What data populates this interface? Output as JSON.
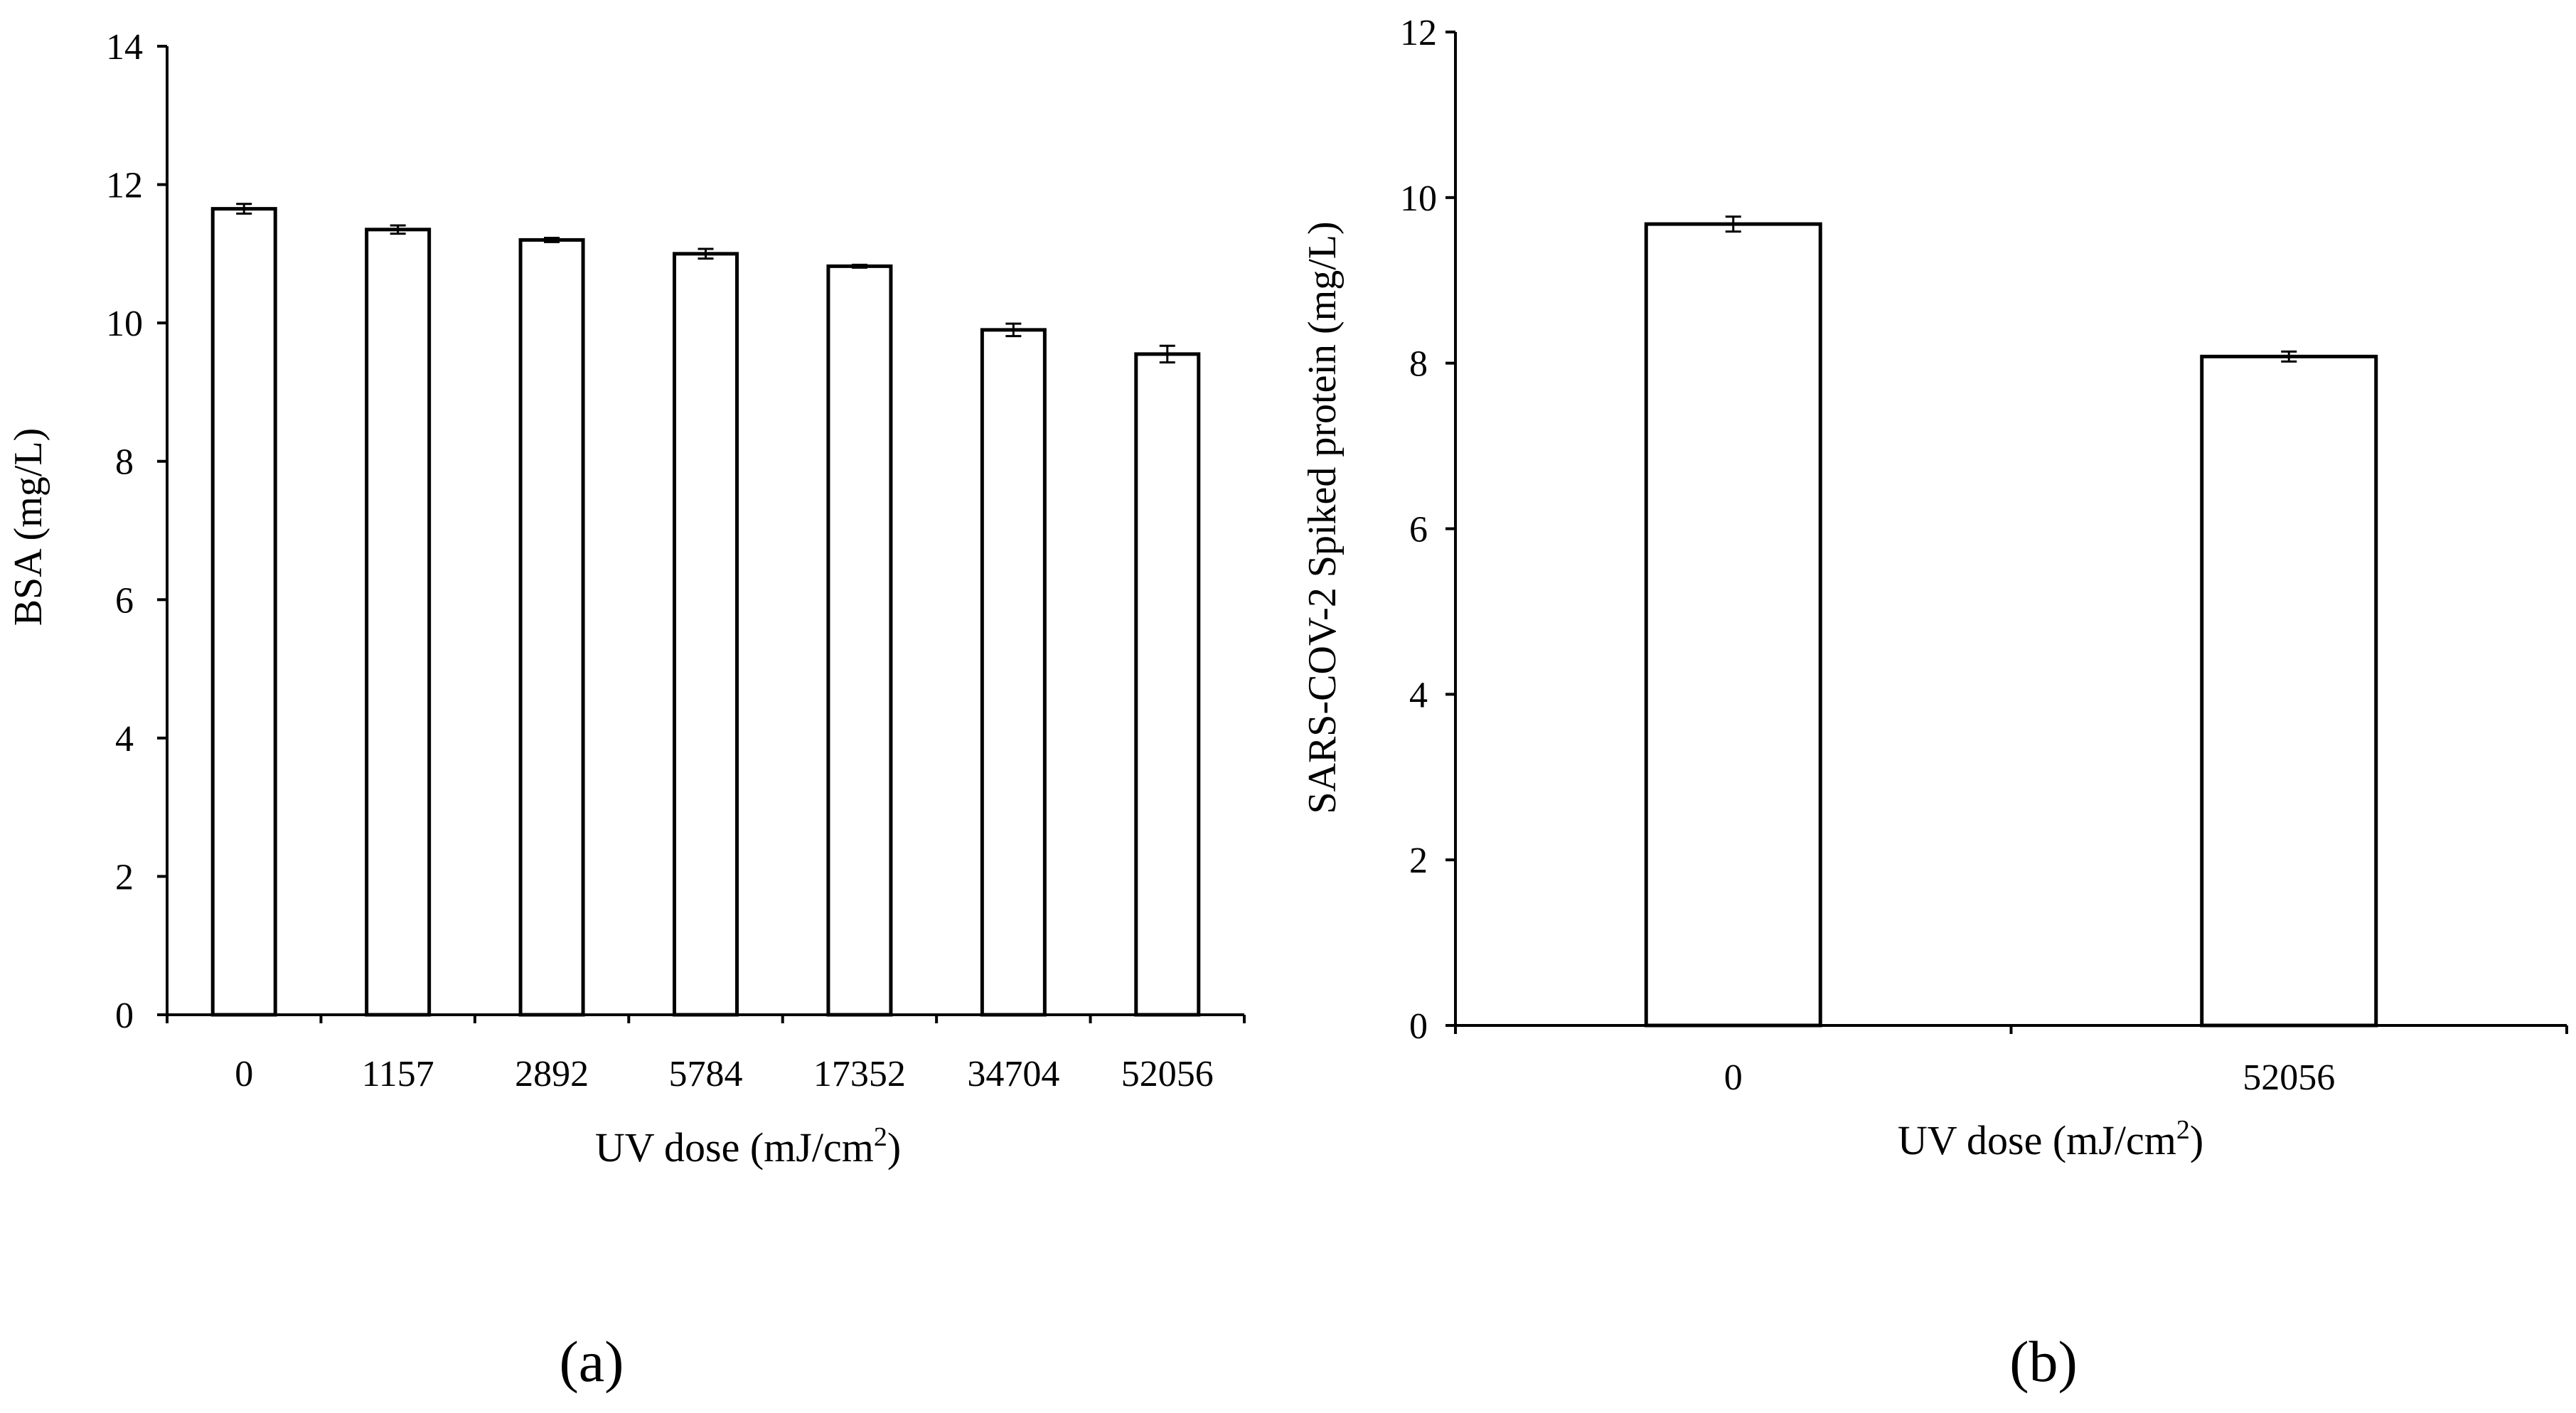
{
  "figure": {
    "panel_labels": [
      "(a)",
      "(b)"
    ]
  },
  "chart_data": [
    {
      "type": "bar",
      "categories": [
        "0",
        "1157",
        "2892",
        "5784",
        "17352",
        "34704",
        "52056"
      ],
      "values": [
        11.65,
        11.35,
        11.2,
        11.0,
        10.82,
        9.9,
        9.55
      ],
      "errors": [
        0.07,
        0.06,
        0.03,
        0.07,
        0.02,
        0.09,
        0.12
      ],
      "xlabel": "UV dose (mJ/cm",
      "xlabel_superscript": "2",
      "xlabel_suffix": ")",
      "ylabel": "BSA (mg/L)",
      "ylim": [
        0,
        14
      ],
      "yticks": [
        0,
        2,
        4,
        6,
        8,
        10,
        12,
        14
      ],
      "grid": false,
      "bar_fill": "#ffffff",
      "bar_stroke": "#000000"
    },
    {
      "type": "bar",
      "categories": [
        "0",
        "52056"
      ],
      "values": [
        9.68,
        8.08
      ],
      "errors": [
        0.09,
        0.06
      ],
      "xlabel": "UV dose (mJ/cm",
      "xlabel_superscript": "2",
      "xlabel_suffix": ")",
      "ylabel": "SARS-COV-2 Spiked protein (mg/L)",
      "ylim": [
        0,
        12
      ],
      "yticks": [
        0,
        2,
        4,
        6,
        8,
        10,
        12
      ],
      "grid": false,
      "bar_fill": "#ffffff",
      "bar_stroke": "#000000"
    }
  ]
}
